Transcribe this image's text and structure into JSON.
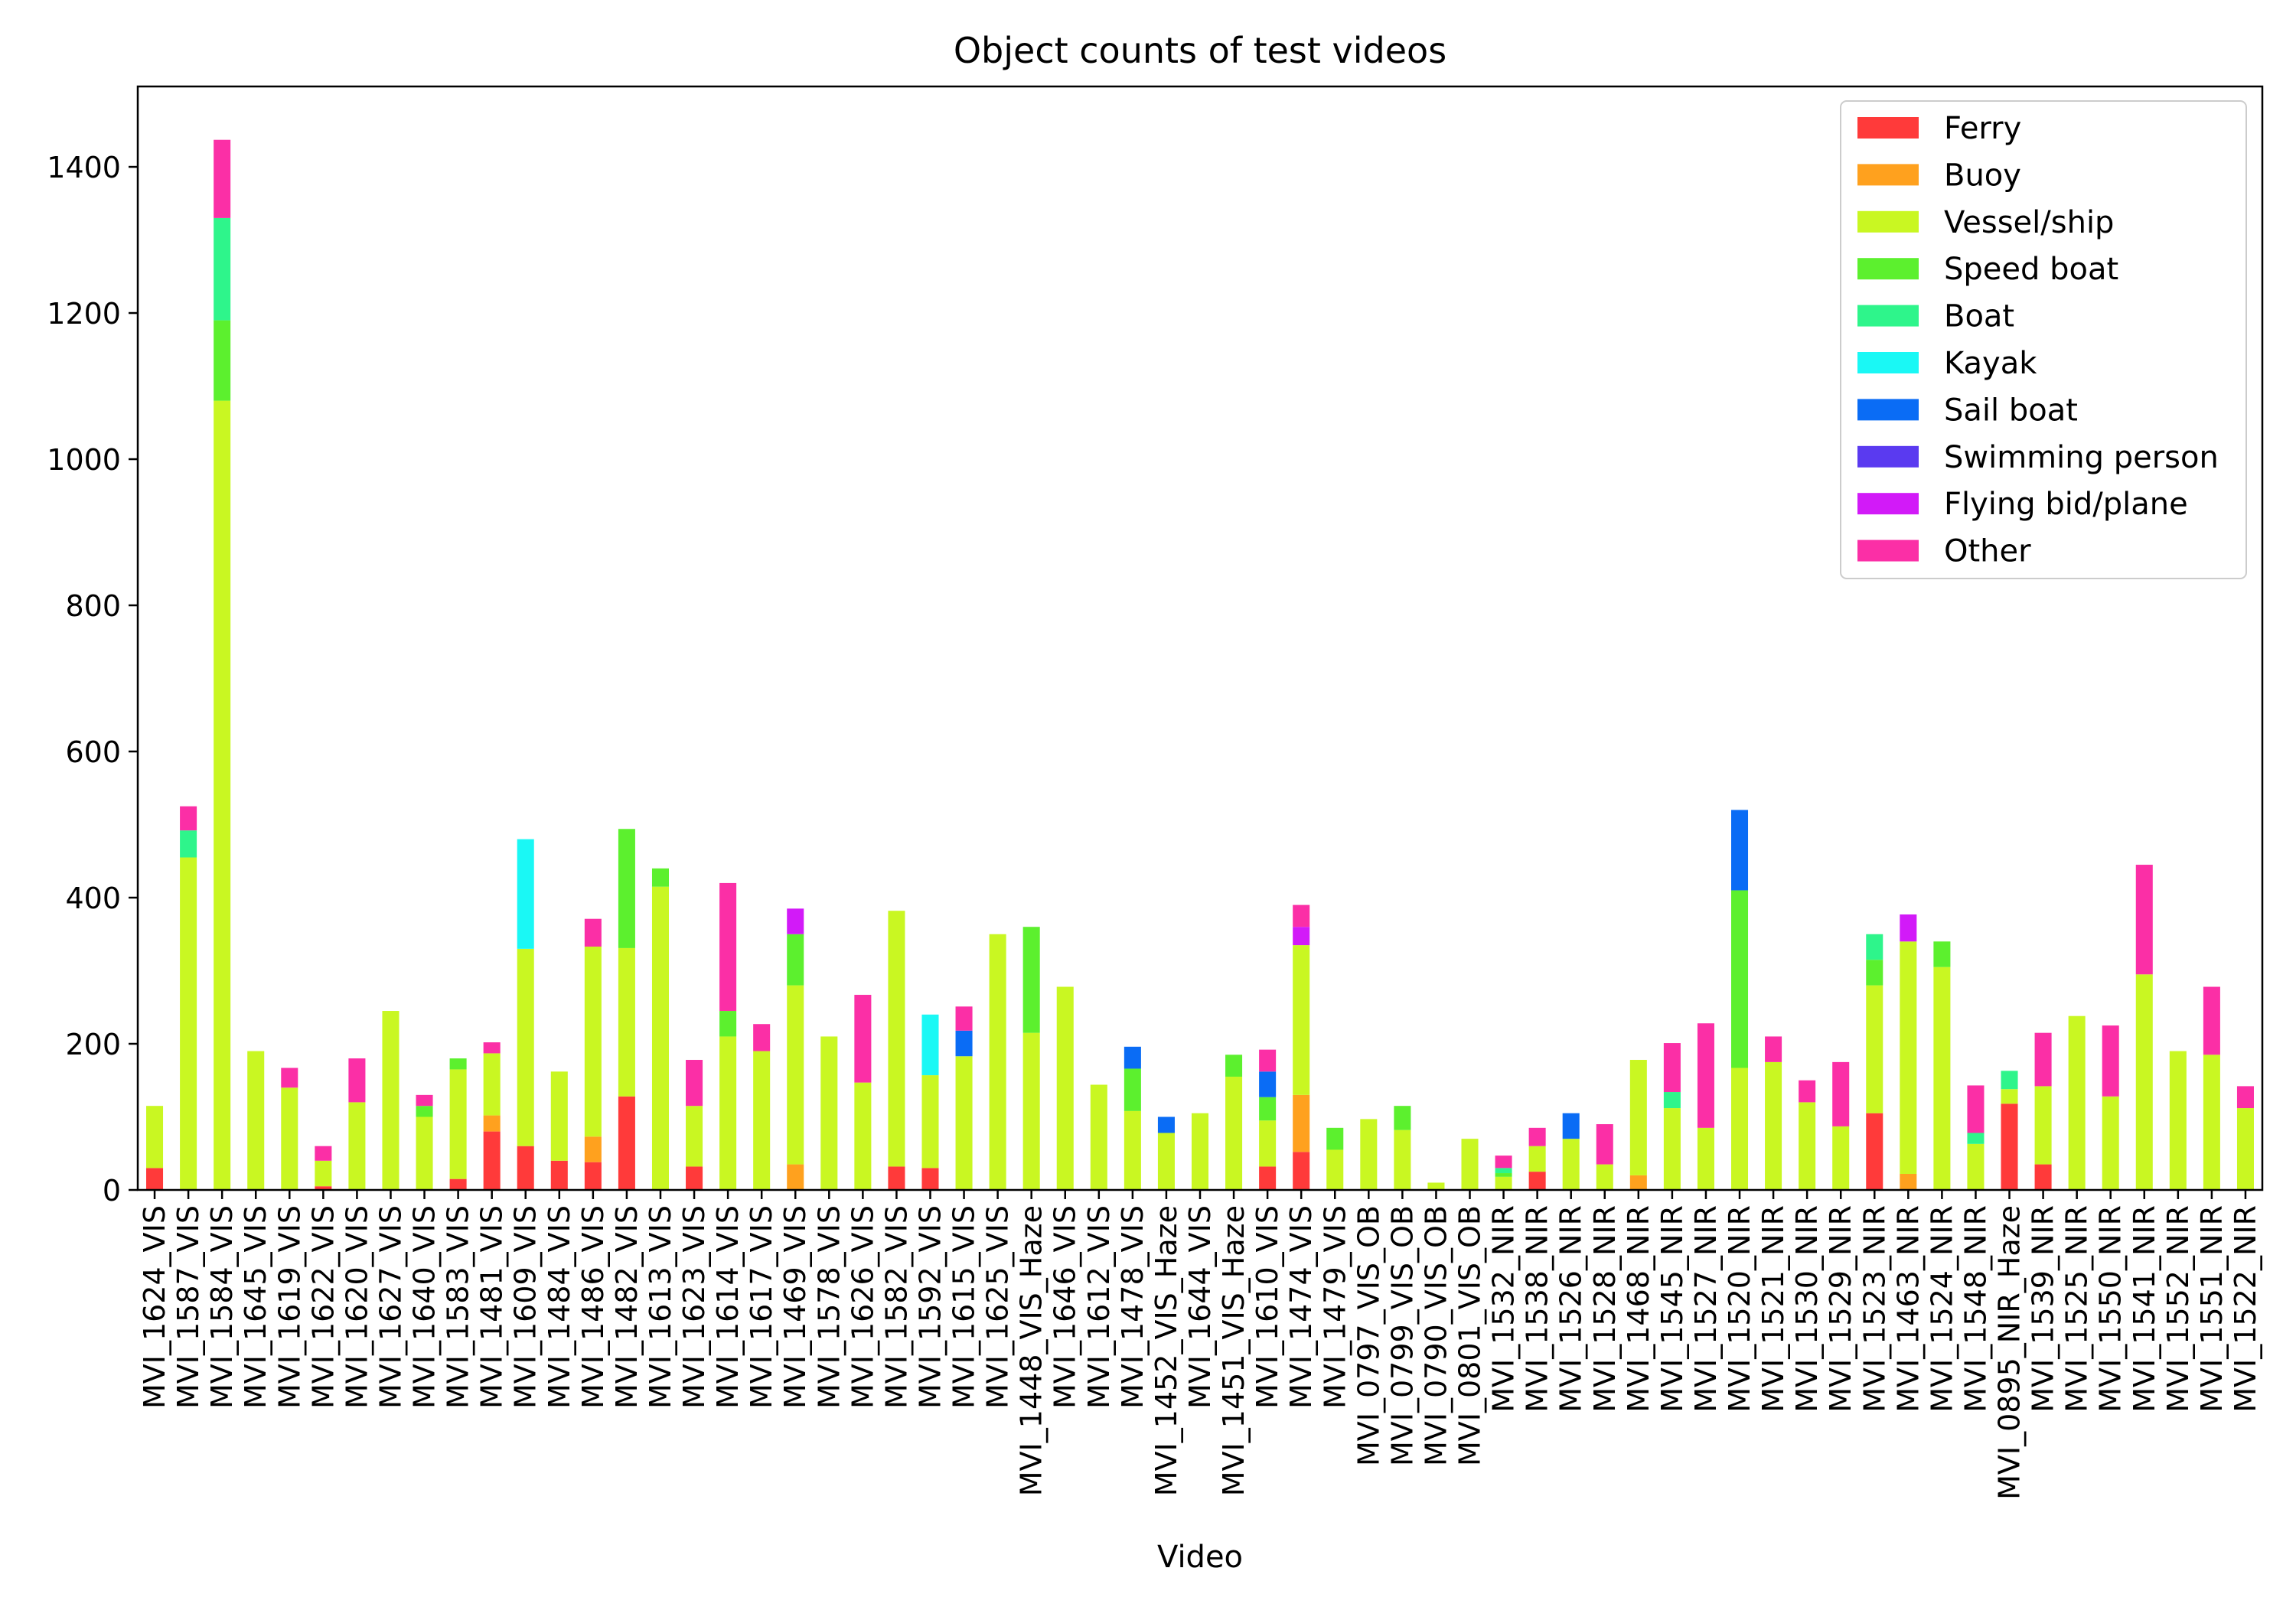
{
  "chart_data": {
    "type": "bar",
    "stacked": true,
    "title": "Object counts of test videos",
    "xlabel": "Video",
    "ylabel": "",
    "ylim": [
      0,
      1510
    ],
    "yticks": [
      0,
      200,
      400,
      600,
      800,
      1000,
      1200,
      1400
    ],
    "legend_position": "top-right",
    "categories": [
      "MVI_1624_VIS",
      "MVI_1587_VIS",
      "MVI_1584_VIS",
      "MVI_1645_VIS",
      "MVI_1619_VIS",
      "MVI_1622_VIS",
      "MVI_1620_VIS",
      "MVI_1627_VIS",
      "MVI_1640_VIS",
      "MVI_1583_VIS",
      "MVI_1481_VIS",
      "MVI_1609_VIS",
      "MVI_1484_VIS",
      "MVI_1486_VIS",
      "MVI_1482_VIS",
      "MVI_1613_VIS",
      "MVI_1623_VIS",
      "MVI_1614_VIS",
      "MVI_1617_VIS",
      "MVI_1469_VIS",
      "MVI_1578_VIS",
      "MVI_1626_VIS",
      "MVI_1582_VIS",
      "MVI_1592_VIS",
      "MVI_1615_VIS",
      "MVI_1625_VIS",
      "MVI_1448_VIS_Haze",
      "MVI_1646_VIS",
      "MVI_1612_VIS",
      "MVI_1478_VIS",
      "MVI_1452_VIS_Haze",
      "MVI_1644_VIS",
      "MVI_1451_VIS_Haze",
      "MVI_1610_VIS",
      "MVI_1474_VIS",
      "MVI_1479_VIS",
      "MVI_0797_VIS_OB",
      "MVI_0799_VIS_OB",
      "MVI_0790_VIS_OB",
      "MVI_0801_VIS_OB",
      "MVI_1532_NIR",
      "MVI_1538_NIR",
      "MVI_1526_NIR",
      "MVI_1528_NIR",
      "MVI_1468_NIR",
      "MVI_1545_NIR",
      "MVI_1527_NIR",
      "MVI_1520_NIR",
      "MVI_1521_NIR",
      "MVI_1530_NIR",
      "MVI_1529_NIR",
      "MVI_1523_NIR",
      "MVI_1463_NIR",
      "MVI_1524_NIR",
      "MVI_1548_NIR",
      "MVI_0895_NIR_Haze",
      "MVI_1539_NIR",
      "MVI_1525_NIR",
      "MVI_1550_NIR",
      "MVI_1541_NIR",
      "MVI_1552_NIR",
      "MVI_1551_NIR",
      "MVI_1522_NIR"
    ],
    "series": [
      {
        "name": "Ferry",
        "color": "#ff3a3a",
        "values": [
          30,
          0,
          0,
          0,
          0,
          5,
          0,
          0,
          0,
          15,
          80,
          60,
          40,
          38,
          128,
          0,
          32,
          0,
          0,
          0,
          0,
          0,
          32,
          30,
          0,
          0,
          0,
          0,
          0,
          0,
          0,
          0,
          0,
          32,
          52,
          0,
          0,
          0,
          0,
          0,
          0,
          25,
          0,
          0,
          0,
          0,
          0,
          0,
          0,
          0,
          0,
          105,
          0,
          0,
          0,
          118,
          35,
          0,
          0,
          0,
          0,
          0,
          0
        ]
      },
      {
        "name": "Buoy",
        "color": "#ffa11e",
        "values": [
          0,
          0,
          0,
          0,
          0,
          0,
          0,
          0,
          0,
          0,
          22,
          0,
          0,
          35,
          0,
          0,
          0,
          0,
          0,
          35,
          0,
          0,
          0,
          0,
          0,
          0,
          0,
          0,
          0,
          0,
          0,
          0,
          0,
          0,
          78,
          0,
          0,
          0,
          0,
          0,
          0,
          0,
          0,
          0,
          20,
          0,
          0,
          0,
          0,
          0,
          0,
          0,
          22,
          0,
          0,
          0,
          0,
          0,
          0,
          0,
          0,
          0,
          0
        ]
      },
      {
        "name": "Vessel/ship",
        "color": "#c9f722",
        "values": [
          85,
          455,
          1080,
          190,
          140,
          35,
          120,
          245,
          100,
          150,
          85,
          270,
          122,
          260,
          203,
          415,
          83,
          210,
          190,
          245,
          210,
          147,
          350,
          127,
          183,
          350,
          215,
          278,
          144,
          108,
          78,
          105,
          155,
          63,
          205,
          55,
          97,
          82,
          10,
          70,
          18,
          35,
          70,
          35,
          158,
          112,
          85,
          167,
          175,
          120,
          87,
          175,
          318,
          305,
          63,
          20,
          107,
          238,
          128,
          295,
          190,
          185,
          112
        ]
      },
      {
        "name": "Speed boat",
        "color": "#5cf02e",
        "values": [
          0,
          0,
          110,
          0,
          0,
          0,
          0,
          0,
          15,
          15,
          0,
          0,
          0,
          0,
          163,
          25,
          0,
          35,
          0,
          70,
          0,
          0,
          0,
          0,
          0,
          0,
          145,
          0,
          0,
          58,
          0,
          0,
          30,
          32,
          0,
          30,
          0,
          33,
          0,
          0,
          5,
          0,
          0,
          0,
          0,
          0,
          0,
          243,
          0,
          0,
          0,
          35,
          0,
          35,
          0,
          0,
          0,
          0,
          0,
          0,
          0,
          0,
          0
        ]
      },
      {
        "name": "Boat",
        "color": "#2ef58b",
        "values": [
          0,
          37,
          140,
          0,
          0,
          0,
          0,
          0,
          0,
          0,
          0,
          0,
          0,
          0,
          0,
          0,
          0,
          0,
          0,
          0,
          0,
          0,
          0,
          0,
          0,
          0,
          0,
          0,
          0,
          0,
          0,
          0,
          0,
          0,
          0,
          0,
          0,
          0,
          0,
          0,
          7,
          0,
          0,
          0,
          0,
          22,
          0,
          0,
          0,
          0,
          0,
          35,
          0,
          0,
          15,
          25,
          0,
          0,
          0,
          0,
          0,
          0,
          0
        ]
      },
      {
        "name": "Kayak",
        "color": "#1af8f5",
        "values": [
          0,
          0,
          0,
          0,
          0,
          0,
          0,
          0,
          0,
          0,
          0,
          150,
          0,
          0,
          0,
          0,
          0,
          0,
          0,
          0,
          0,
          0,
          0,
          83,
          0,
          0,
          0,
          0,
          0,
          0,
          0,
          0,
          0,
          0,
          0,
          0,
          0,
          0,
          0,
          0,
          0,
          0,
          0,
          0,
          0,
          0,
          0,
          0,
          0,
          0,
          0,
          0,
          0,
          0,
          0,
          0,
          0,
          0,
          0,
          0,
          0,
          0,
          0
        ]
      },
      {
        "name": "Sail boat",
        "color": "#0a6cf5",
        "values": [
          0,
          0,
          0,
          0,
          0,
          0,
          0,
          0,
          0,
          0,
          0,
          0,
          0,
          0,
          0,
          0,
          0,
          0,
          0,
          0,
          0,
          0,
          0,
          0,
          35,
          0,
          0,
          0,
          0,
          30,
          22,
          0,
          0,
          35,
          0,
          0,
          0,
          0,
          0,
          0,
          0,
          0,
          35,
          0,
          0,
          0,
          0,
          110,
          0,
          0,
          0,
          0,
          0,
          0,
          0,
          0,
          0,
          0,
          0,
          0,
          0,
          0,
          0
        ]
      },
      {
        "name": "Swimming person",
        "color": "#5a3af0",
        "values": [
          0,
          0,
          0,
          0,
          0,
          0,
          0,
          0,
          0,
          0,
          0,
          0,
          0,
          0,
          0,
          0,
          0,
          0,
          0,
          0,
          0,
          0,
          0,
          0,
          0,
          0,
          0,
          0,
          0,
          0,
          0,
          0,
          0,
          0,
          0,
          0,
          0,
          0,
          0,
          0,
          0,
          0,
          0,
          0,
          0,
          0,
          0,
          0,
          0,
          0,
          0,
          0,
          0,
          0,
          0,
          0,
          0,
          0,
          0,
          0,
          0,
          0,
          0
        ]
      },
      {
        "name": "Flying bid/plane",
        "color": "#d21af8",
        "values": [
          0,
          0,
          0,
          0,
          0,
          0,
          0,
          0,
          0,
          0,
          0,
          0,
          0,
          0,
          0,
          0,
          0,
          0,
          0,
          35,
          0,
          0,
          0,
          0,
          0,
          0,
          0,
          0,
          0,
          0,
          0,
          0,
          0,
          0,
          25,
          0,
          0,
          0,
          0,
          0,
          0,
          0,
          0,
          0,
          0,
          0,
          0,
          0,
          0,
          0,
          0,
          0,
          37,
          0,
          0,
          0,
          0,
          0,
          0,
          0,
          0,
          0,
          0
        ]
      },
      {
        "name": "Other",
        "color": "#fb2fa6",
        "values": [
          0,
          33,
          107,
          0,
          27,
          20,
          60,
          0,
          15,
          0,
          15,
          0,
          0,
          38,
          0,
          0,
          63,
          175,
          37,
          0,
          0,
          120,
          0,
          0,
          33,
          0,
          0,
          0,
          0,
          0,
          0,
          0,
          0,
          30,
          30,
          0,
          0,
          0,
          0,
          0,
          17,
          25,
          0,
          55,
          0,
          67,
          143,
          0,
          35,
          30,
          88,
          0,
          0,
          0,
          65,
          0,
          73,
          0,
          97,
          150,
          0,
          93,
          30
        ]
      }
    ]
  }
}
